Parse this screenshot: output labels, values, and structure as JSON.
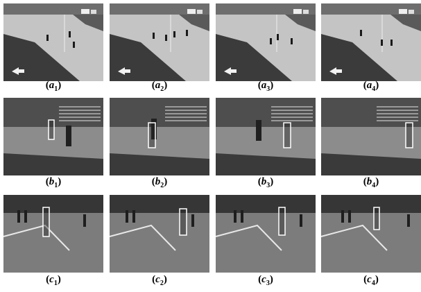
{
  "figure": {
    "paren_open": "(",
    "paren_close": ")",
    "rows": [
      {
        "letter": "a",
        "subs": [
          "1",
          "2",
          "3",
          "4"
        ]
      },
      {
        "letter": "b",
        "subs": [
          "1",
          "2",
          "3",
          "4"
        ]
      },
      {
        "letter": "c",
        "subs": [
          "1",
          "2",
          "3",
          "4"
        ]
      }
    ]
  }
}
